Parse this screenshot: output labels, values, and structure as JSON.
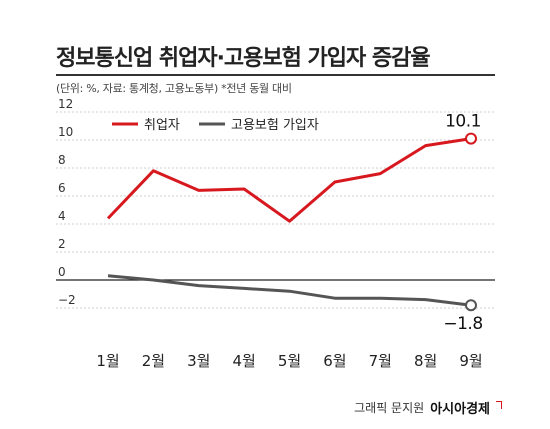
{
  "header": {
    "title": "정보통신업 취업자·고용보험 가입자 증감율",
    "subtitle": "(단위: %, 자료: 통계청, 고용노동부) *전년 동월 대비"
  },
  "chart_data": {
    "type": "line",
    "categories": [
      "1월",
      "2월",
      "3월",
      "4월",
      "5월",
      "6월",
      "7월",
      "8월",
      "9월"
    ],
    "ylim": [
      -2,
      12
    ],
    "yticks": [
      12,
      10,
      8,
      6,
      4,
      2,
      0,
      -2
    ],
    "ytick_labels": [
      "12",
      "10",
      "8",
      "6",
      "4",
      "2",
      "0",
      "−2"
    ],
    "grid": true,
    "legend_position": "top-left",
    "series": [
      {
        "name": "취업자",
        "color": "#d7191f",
        "values": [
          4.4,
          7.8,
          6.4,
          6.5,
          4.2,
          7.0,
          7.6,
          9.6,
          10.1
        ],
        "end_label": "10.1"
      },
      {
        "name": "고용보험 가입자",
        "color": "#555555",
        "values": [
          0.3,
          0.0,
          -0.4,
          -0.6,
          -0.8,
          -1.3,
          -1.3,
          -1.4,
          -1.8
        ],
        "end_label": "−1.8"
      }
    ]
  },
  "credit": {
    "text": "그래픽 문지원",
    "brand": "아시아경제"
  }
}
